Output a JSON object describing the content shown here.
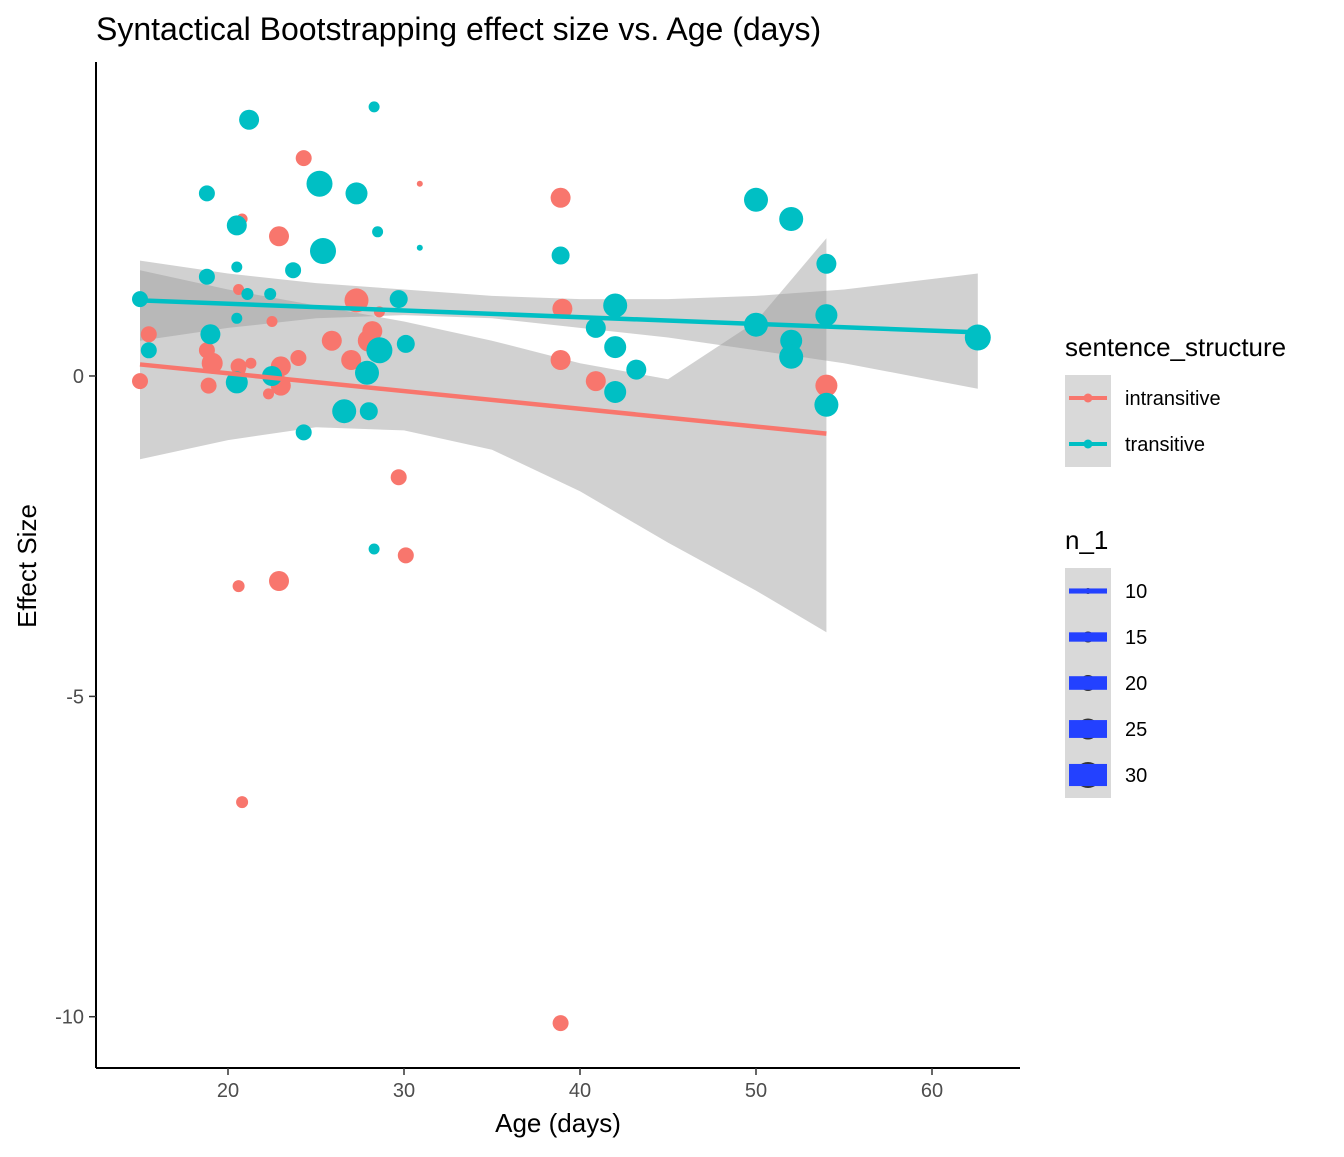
{
  "chart_data": {
    "type": "scatter",
    "title": "Syntactical Bootstrapping effect size vs. Age (days)",
    "xlabel": "Age (days)",
    "ylabel": "Effect Size",
    "xlim": [
      12.5,
      65
    ],
    "ylim": [
      -10.8,
      4.9
    ],
    "xticks": [
      20,
      30,
      40,
      50,
      60
    ],
    "yticks": [
      0,
      -5,
      -10
    ],
    "ytick_labels": [
      "0",
      "-5",
      "-10"
    ],
    "grid": false,
    "colors": {
      "intransitive": "#F8766D",
      "transitive": "#00BFC4",
      "ribbon": "#999999",
      "size_legend_key": "#2341FF"
    },
    "series": [
      {
        "name": "intransitive",
        "color": "#F8766D",
        "points": [
          {
            "x": 15.0,
            "y": -0.08,
            "n": 20
          },
          {
            "x": 15.5,
            "y": 0.65,
            "n": 20
          },
          {
            "x": 18.8,
            "y": 0.4,
            "n": 20
          },
          {
            "x": 18.9,
            "y": -0.15,
            "n": 20
          },
          {
            "x": 19.1,
            "y": 0.2,
            "n": 25
          },
          {
            "x": 20.6,
            "y": 1.35,
            "n": 15
          },
          {
            "x": 20.6,
            "y": 0.15,
            "n": 20
          },
          {
            "x": 20.6,
            "y": -3.28,
            "n": 16
          },
          {
            "x": 20.7,
            "y": 0.1,
            "n": 15
          },
          {
            "x": 20.8,
            "y": 2.45,
            "n": 15
          },
          {
            "x": 20.8,
            "y": -6.65,
            "n": 16
          },
          {
            "x": 21.3,
            "y": 0.2,
            "n": 15
          },
          {
            "x": 22.3,
            "y": -0.28,
            "n": 15
          },
          {
            "x": 22.5,
            "y": 0.85,
            "n": 15
          },
          {
            "x": 22.9,
            "y": 2.18,
            "n": 24
          },
          {
            "x": 22.9,
            "y": -3.2,
            "n": 24
          },
          {
            "x": 23.0,
            "y": -0.15,
            "n": 24
          },
          {
            "x": 23.0,
            "y": 0.15,
            "n": 24
          },
          {
            "x": 24.0,
            "y": 0.28,
            "n": 20
          },
          {
            "x": 24.3,
            "y": 3.4,
            "n": 20
          },
          {
            "x": 25.9,
            "y": 0.55,
            "n": 24
          },
          {
            "x": 27.0,
            "y": 0.25,
            "n": 24
          },
          {
            "x": 27.3,
            "y": 1.18,
            "n": 28
          },
          {
            "x": 28.0,
            "y": 0.55,
            "n": 26
          },
          {
            "x": 28.2,
            "y": 0.7,
            "n": 24
          },
          {
            "x": 28.6,
            "y": 1.0,
            "n": 15
          },
          {
            "x": 29.7,
            "y": -1.58,
            "n": 20
          },
          {
            "x": 30.1,
            "y": -2.8,
            "n": 20
          },
          {
            "x": 30.9,
            "y": 3.0,
            "n": 10
          },
          {
            "x": 38.9,
            "y": 2.78,
            "n": 24
          },
          {
            "x": 38.9,
            "y": -10.1,
            "n": 20
          },
          {
            "x": 38.9,
            "y": 0.25,
            "n": 24
          },
          {
            "x": 39.0,
            "y": 1.05,
            "n": 24
          },
          {
            "x": 40.9,
            "y": -0.08,
            "n": 24
          },
          {
            "x": 54.0,
            "y": -0.15,
            "n": 26
          }
        ],
        "trend": {
          "x": [
            15,
            54
          ],
          "y": [
            0.18,
            -0.9
          ]
        },
        "ribbon": {
          "x": [
            15,
            20,
            25,
            30,
            35,
            40,
            45,
            50,
            54
          ],
          "lower": [
            -1.3,
            -1.0,
            -0.8,
            -0.85,
            -1.15,
            -1.8,
            -2.6,
            -3.35,
            -4.0
          ],
          "upper": [
            1.65,
            1.35,
            1.1,
            0.85,
            0.55,
            0.2,
            -0.05,
            0.85,
            2.15
          ]
        }
      },
      {
        "name": "transitive",
        "color": "#00BFC4",
        "points": [
          {
            "x": 15.0,
            "y": 1.2,
            "n": 20
          },
          {
            "x": 15.5,
            "y": 0.4,
            "n": 20
          },
          {
            "x": 18.8,
            "y": 2.85,
            "n": 20
          },
          {
            "x": 18.8,
            "y": 1.55,
            "n": 20
          },
          {
            "x": 19.0,
            "y": 0.65,
            "n": 24
          },
          {
            "x": 20.5,
            "y": 1.7,
            "n": 15
          },
          {
            "x": 20.5,
            "y": 0.9,
            "n": 15
          },
          {
            "x": 20.5,
            "y": -0.1,
            "n": 26
          },
          {
            "x": 20.5,
            "y": 2.35,
            "n": 24
          },
          {
            "x": 21.1,
            "y": 1.28,
            "n": 16
          },
          {
            "x": 21.2,
            "y": 4.0,
            "n": 24
          },
          {
            "x": 22.4,
            "y": 1.28,
            "n": 16
          },
          {
            "x": 22.5,
            "y": 0.0,
            "n": 24
          },
          {
            "x": 23.7,
            "y": 1.65,
            "n": 20
          },
          {
            "x": 24.3,
            "y": -0.88,
            "n": 20
          },
          {
            "x": 25.2,
            "y": 3.0,
            "n": 30
          },
          {
            "x": 25.4,
            "y": 1.95,
            "n": 30
          },
          {
            "x": 26.6,
            "y": -0.55,
            "n": 28
          },
          {
            "x": 27.3,
            "y": 2.85,
            "n": 26
          },
          {
            "x": 27.9,
            "y": 0.05,
            "n": 28
          },
          {
            "x": 28.0,
            "y": -0.55,
            "n": 22
          },
          {
            "x": 28.3,
            "y": 4.2,
            "n": 15
          },
          {
            "x": 28.3,
            "y": -2.7,
            "n": 15
          },
          {
            "x": 28.5,
            "y": 2.25,
            "n": 15
          },
          {
            "x": 28.6,
            "y": 0.4,
            "n": 30
          },
          {
            "x": 29.7,
            "y": 1.2,
            "n": 22
          },
          {
            "x": 30.1,
            "y": 0.5,
            "n": 22
          },
          {
            "x": 30.9,
            "y": 2.0,
            "n": 10
          },
          {
            "x": 38.9,
            "y": 1.88,
            "n": 22
          },
          {
            "x": 40.9,
            "y": 0.75,
            "n": 24
          },
          {
            "x": 42.0,
            "y": 1.1,
            "n": 28
          },
          {
            "x": 42.0,
            "y": 0.45,
            "n": 26
          },
          {
            "x": 42.0,
            "y": -0.25,
            "n": 26
          },
          {
            "x": 43.2,
            "y": 0.1,
            "n": 24
          },
          {
            "x": 50.0,
            "y": 2.75,
            "n": 28
          },
          {
            "x": 50.0,
            "y": 0.8,
            "n": 28
          },
          {
            "x": 52.0,
            "y": 2.45,
            "n": 28
          },
          {
            "x": 52.0,
            "y": 0.55,
            "n": 26
          },
          {
            "x": 52.0,
            "y": 0.3,
            "n": 28
          },
          {
            "x": 54.0,
            "y": 1.75,
            "n": 24
          },
          {
            "x": 54.0,
            "y": 0.95,
            "n": 26
          },
          {
            "x": 54.0,
            "y": -0.45,
            "n": 28
          },
          {
            "x": 62.6,
            "y": 0.6,
            "n": 30
          }
        ],
        "trend": {
          "x": [
            15,
            62.6
          ],
          "y": [
            1.18,
            0.68
          ]
        },
        "ribbon": {
          "x": [
            15,
            20,
            25,
            30,
            35,
            40,
            45,
            50,
            55,
            62.6
          ],
          "lower": [
            0.55,
            0.75,
            0.9,
            0.95,
            0.9,
            0.75,
            0.6,
            0.4,
            0.2,
            -0.2
          ],
          "upper": [
            1.8,
            1.6,
            1.45,
            1.35,
            1.25,
            1.2,
            1.2,
            1.25,
            1.35,
            1.6
          ]
        }
      }
    ],
    "legend": {
      "color_title": "sentence_structure",
      "color_entries": [
        {
          "label": "intransitive",
          "color": "#F8766D"
        },
        {
          "label": "transitive",
          "color": "#00BFC4"
        }
      ],
      "size_title": "n_1",
      "size_entries": [
        "10",
        "15",
        "20",
        "25",
        "30"
      ]
    },
    "legend_position": "right"
  }
}
